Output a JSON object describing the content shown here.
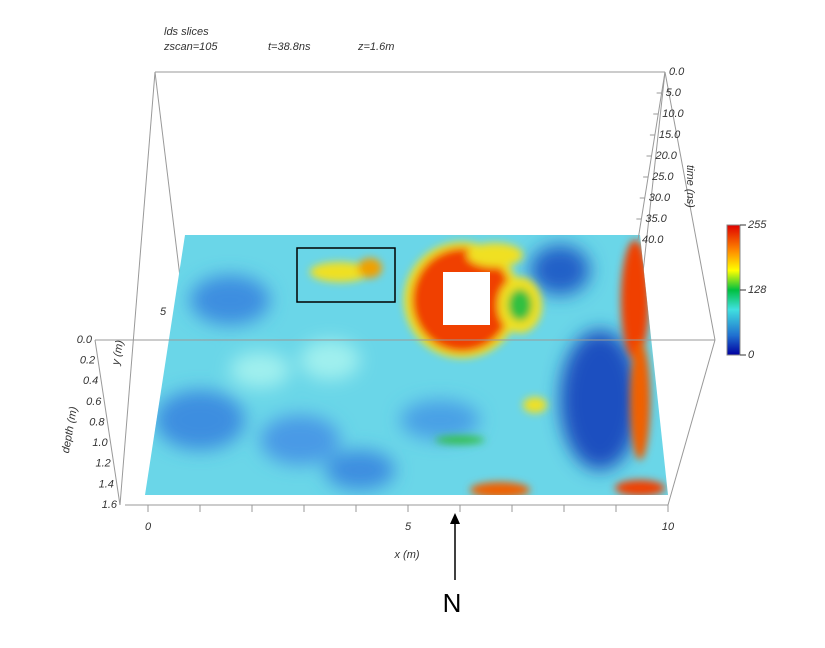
{
  "header": {
    "title": "lds slices",
    "zscan": "zscan=105",
    "time": "t=38.8ns",
    "depth": "z=1.6m"
  },
  "time_axis": {
    "label": "time (ns)",
    "ticks": [
      "0.0",
      "5.0",
      "10.0",
      "15.0",
      "20.0",
      "25.0",
      "30.0",
      "35.0",
      "40.0"
    ]
  },
  "y_axis": {
    "label": "y (m)",
    "ticks": [
      "5"
    ]
  },
  "depth_axis": {
    "label": "depth (m)",
    "ticks": [
      "0.0",
      "0.2",
      "0.4",
      "0.6",
      "0.8",
      "1.0",
      "1.2",
      "1.4",
      "1.6"
    ]
  },
  "x_axis": {
    "label": "x (m)",
    "ticks": [
      "0",
      "5",
      "10"
    ]
  },
  "colorbar": {
    "ticks": [
      "255",
      "128",
      "0"
    ]
  },
  "north": "N"
}
